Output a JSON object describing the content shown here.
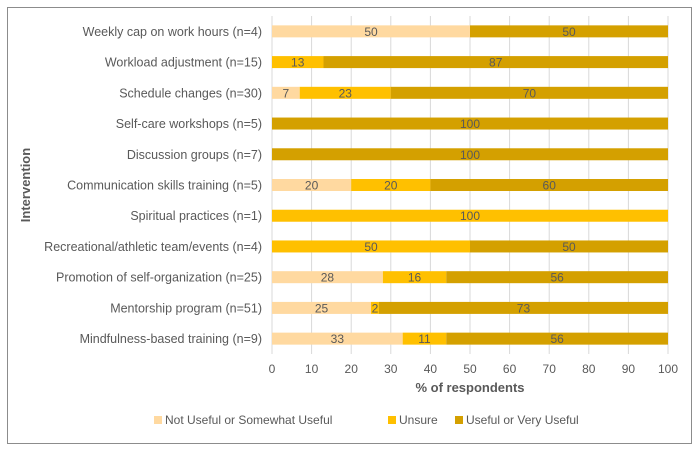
{
  "chart_data": {
    "type": "bar",
    "orientation": "horizontal",
    "stacked": true,
    "title": "",
    "xlabel": "% of respondents",
    "ylabel": "Intervention",
    "xlim": [
      0,
      100
    ],
    "xticks": [
      0,
      10,
      20,
      30,
      40,
      50,
      60,
      70,
      80,
      90,
      100
    ],
    "grid": "vertical",
    "legend_position": "bottom",
    "categories": [
      "Weekly cap on work hours (n=4)",
      "Workload adjustment (n=15)",
      "Schedule changes (n=30)",
      "Self-care workshops (n=5)",
      "Discussion groups (n=7)",
      "Communication skills training (n=5)",
      "Spiritual practices (n=1)",
      "Recreational/athletic team/events (n=4)",
      "Promotion of self-organization (n=25)",
      "Mentorship program (n=51)",
      "Mindfulness-based training (n=9)"
    ],
    "series": [
      {
        "name": "Not Useful or Somewhat Useful",
        "color": "#FFD9A0",
        "values": [
          50,
          0,
          7,
          0,
          0,
          20,
          0,
          0,
          28,
          25,
          33
        ]
      },
      {
        "name": "Unsure",
        "color": "#FFC000",
        "values": [
          0,
          13,
          23,
          0,
          0,
          20,
          100,
          50,
          16,
          2,
          11
        ]
      },
      {
        "name": "Useful or Very Useful",
        "color": "#D4A000",
        "values": [
          50,
          87,
          70,
          100,
          100,
          60,
          0,
          50,
          56,
          73,
          56
        ]
      }
    ]
  }
}
